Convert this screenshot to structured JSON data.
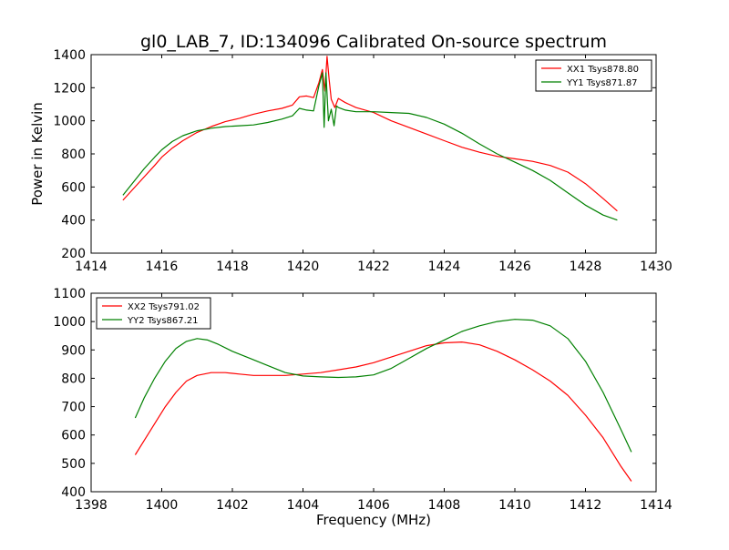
{
  "figure": {
    "title": "gl0_LAB_7, ID:134096 Calibrated On-source spectrum"
  },
  "colors": {
    "background": "#ffffff",
    "axes": "#000000",
    "series_red": "#ff0000",
    "series_green": "#008000"
  },
  "chart_data": [
    {
      "type": "line",
      "title": "gl0_LAB_7, ID:134096 Calibrated On-source spectrum",
      "xlabel": "",
      "ylabel": "Power in Kelvin",
      "xlim": [
        1414,
        1430
      ],
      "ylim": [
        200,
        1400
      ],
      "xticks": [
        1414,
        1416,
        1418,
        1420,
        1422,
        1424,
        1426,
        1428,
        1430
      ],
      "yticks": [
        200,
        400,
        600,
        800,
        1000,
        1200,
        1400
      ],
      "grid": false,
      "legend_position": "top-right",
      "series": [
        {
          "name": "XX1 Tsys878.80",
          "color": "#ff0000",
          "x": [
            1414.9,
            1415.2,
            1415.5,
            1415.8,
            1416.0,
            1416.3,
            1416.6,
            1417.0,
            1417.4,
            1417.8,
            1418.2,
            1418.6,
            1419.0,
            1419.4,
            1419.7,
            1419.9,
            1420.1,
            1420.3,
            1420.45,
            1420.55,
            1420.62,
            1420.68,
            1420.74,
            1420.8,
            1420.9,
            1421.0,
            1421.2,
            1421.5,
            1422.0,
            1422.5,
            1423.0,
            1423.5,
            1424.0,
            1424.5,
            1425.0,
            1425.5,
            1426.0,
            1426.5,
            1427.0,
            1427.5,
            1428.0,
            1428.5,
            1428.9
          ],
          "y": [
            520,
            590,
            660,
            730,
            780,
            835,
            880,
            930,
            965,
            995,
            1015,
            1040,
            1060,
            1075,
            1095,
            1145,
            1150,
            1140,
            1230,
            1310,
            1180,
            1390,
            1250,
            1130,
            1080,
            1135,
            1110,
            1080,
            1050,
            1000,
            960,
            920,
            880,
            840,
            810,
            785,
            770,
            755,
            730,
            690,
            620,
            530,
            455
          ]
        },
        {
          "name": "YY1 Tsys871.87",
          "color": "#008000",
          "x": [
            1414.9,
            1415.2,
            1415.5,
            1415.8,
            1416.0,
            1416.3,
            1416.6,
            1417.0,
            1417.4,
            1417.8,
            1418.2,
            1418.6,
            1419.0,
            1419.4,
            1419.7,
            1419.9,
            1420.1,
            1420.3,
            1420.45,
            1420.55,
            1420.6,
            1420.65,
            1420.72,
            1420.8,
            1420.88,
            1420.95,
            1421.0,
            1421.2,
            1421.5,
            1422.0,
            1422.5,
            1423.0,
            1423.5,
            1424.0,
            1424.5,
            1425.0,
            1425.5,
            1426.0,
            1426.5,
            1427.0,
            1427.5,
            1428.0,
            1428.5,
            1428.9
          ],
          "y": [
            550,
            630,
            710,
            780,
            825,
            875,
            910,
            940,
            955,
            965,
            970,
            975,
            990,
            1010,
            1030,
            1075,
            1065,
            1060,
            1210,
            1290,
            960,
            1290,
            1000,
            1070,
            970,
            1090,
            1080,
            1065,
            1055,
            1055,
            1050,
            1045,
            1020,
            980,
            925,
            860,
            800,
            750,
            700,
            640,
            565,
            490,
            430,
            400
          ]
        }
      ]
    },
    {
      "type": "line",
      "title": "",
      "xlabel": "Frequency (MHz)",
      "ylabel": "",
      "xlim": [
        1398,
        1414
      ],
      "ylim": [
        400,
        1100
      ],
      "xticks": [
        1398,
        1400,
        1402,
        1404,
        1406,
        1408,
        1410,
        1412,
        1414
      ],
      "yticks": [
        400,
        500,
        600,
        700,
        800,
        900,
        1000,
        1100
      ],
      "grid": false,
      "legend_position": "top-left",
      "series": [
        {
          "name": "XX2 Tsys791.02",
          "color": "#ff0000",
          "x": [
            1399.25,
            1399.5,
            1399.8,
            1400.1,
            1400.4,
            1400.7,
            1401.0,
            1401.4,
            1401.8,
            1402.2,
            1402.6,
            1403.0,
            1403.5,
            1404.0,
            1404.5,
            1405.0,
            1405.5,
            1406.0,
            1406.5,
            1407.0,
            1407.5,
            1408.0,
            1408.5,
            1409.0,
            1409.5,
            1410.0,
            1410.5,
            1411.0,
            1411.5,
            1412.0,
            1412.5,
            1413.0,
            1413.3
          ],
          "y": [
            530,
            580,
            640,
            700,
            750,
            790,
            810,
            820,
            820,
            815,
            810,
            810,
            810,
            815,
            820,
            830,
            840,
            855,
            875,
            895,
            915,
            925,
            928,
            918,
            895,
            865,
            830,
            790,
            740,
            670,
            590,
            490,
            437
          ]
        },
        {
          "name": "YY2 Tsys867.21",
          "color": "#008000",
          "x": [
            1399.25,
            1399.5,
            1399.8,
            1400.1,
            1400.4,
            1400.7,
            1401.0,
            1401.3,
            1401.6,
            1402.0,
            1402.5,
            1403.0,
            1403.5,
            1404.0,
            1404.5,
            1405.0,
            1405.5,
            1406.0,
            1406.5,
            1407.0,
            1407.5,
            1408.0,
            1408.5,
            1409.0,
            1409.5,
            1410.0,
            1410.5,
            1411.0,
            1411.5,
            1412.0,
            1412.5,
            1413.0,
            1413.3
          ],
          "y": [
            660,
            730,
            800,
            860,
            905,
            930,
            940,
            935,
            920,
            895,
            870,
            845,
            820,
            808,
            805,
            803,
            805,
            812,
            835,
            870,
            905,
            935,
            965,
            985,
            1000,
            1008,
            1005,
            985,
            940,
            860,
            750,
            620,
            540
          ]
        }
      ]
    }
  ]
}
